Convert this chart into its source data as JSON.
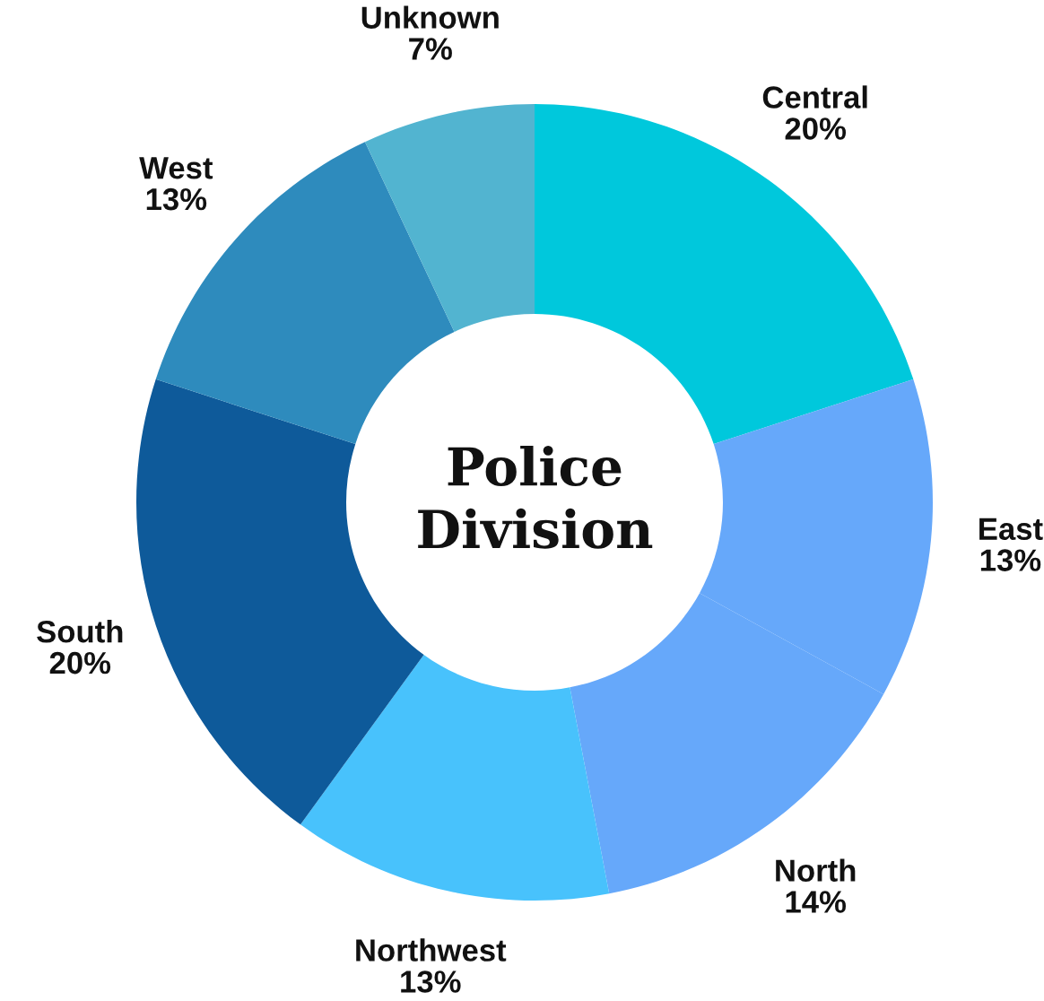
{
  "chart_data": {
    "type": "donut",
    "title": "Police\nDivision",
    "categories": [
      "Central",
      "East",
      "North",
      "Northwest",
      "South",
      "West",
      "Unknown"
    ],
    "values": [
      20,
      13,
      14,
      13,
      20,
      13,
      7
    ],
    "value_labels": [
      "20%",
      "13%",
      "14%",
      "13%",
      "20%",
      "13%",
      "7%"
    ],
    "colors": [
      "#00c8dc",
      "#66a8fa",
      "#66a8fa",
      "#48c2fc",
      "#0e5a9a",
      "#2e8bbd",
      "#52b4d0"
    ]
  }
}
